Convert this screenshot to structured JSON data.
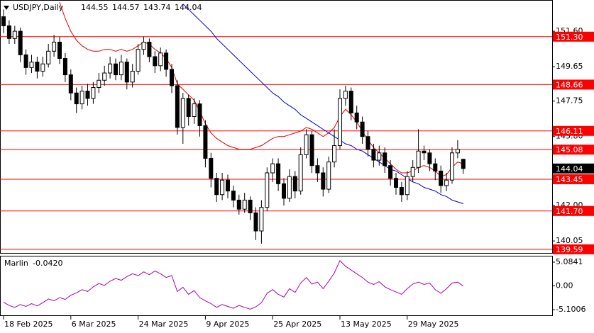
{
  "chart_data": [
    {
      "type": "candlestick",
      "title": "USDJPY,Daily",
      "categories": [
        "18 Feb 2025",
        null,
        null,
        null,
        null,
        null,
        null,
        null,
        null,
        null,
        null,
        null,
        "6 Mar 2025",
        null,
        null,
        null,
        null,
        null,
        null,
        null,
        null,
        null,
        null,
        null,
        "24 Mar 2025",
        null,
        null,
        null,
        null,
        null,
        null,
        null,
        null,
        null,
        null,
        null,
        "9 Apr 2025",
        null,
        null,
        null,
        null,
        null,
        null,
        null,
        null,
        null,
        null,
        null,
        "25 Apr 2025",
        null,
        null,
        null,
        null,
        null,
        null,
        null,
        null,
        null,
        null,
        null,
        "13 May 2025",
        null,
        null,
        null,
        null,
        null,
        null,
        null,
        null,
        null,
        null,
        null,
        "29 May 2025",
        null,
        null,
        null,
        null,
        null,
        null,
        null,
        null,
        null,
        null
      ],
      "open": [
        152.4,
        151.9,
        151.2,
        151.6,
        150.3,
        149.6,
        149.9,
        149.4,
        149.8,
        150.5,
        151.0,
        150.1,
        149.2,
        148.2,
        147.6,
        148.3,
        147.9,
        148.5,
        148.9,
        149.3,
        149.8,
        149.2,
        149.9,
        148.8,
        149.4,
        150.6,
        151.0,
        150.2,
        149.7,
        150.4,
        149.5,
        148.6,
        146.3,
        147.9,
        146.9,
        147.6,
        146.4,
        144.6,
        143.5,
        142.6,
        143.4,
        142.8,
        142.3,
        141.8,
        142.3,
        141.6,
        140.6,
        141.9,
        143.8,
        144.3,
        143.2,
        142.4,
        143.6,
        142.8,
        144.8,
        145.9,
        144.2,
        143.8,
        142.9,
        144.4,
        145.3,
        147.9,
        148.3,
        147.1,
        146.6,
        145.8,
        145.1,
        144.5,
        144.9,
        144.2,
        143.5,
        143.0,
        142.6,
        143.6,
        144.1,
        145.0,
        144.9,
        144.3,
        143.9,
        143.1,
        143.4,
        144.9,
        144.55
      ],
      "high": [
        152.8,
        152.2,
        151.9,
        151.8,
        150.6,
        150.3,
        150.2,
        150.2,
        150.9,
        151.4,
        151.3,
        150.4,
        149.5,
        148.5,
        148.6,
        148.7,
        148.8,
        149.3,
        149.7,
        150.2,
        150.1,
        150.3,
        150.1,
        149.8,
        150.9,
        151.3,
        151.2,
        150.5,
        150.7,
        150.6,
        149.8,
        148.9,
        148.2,
        148.1,
        147.9,
        147.8,
        146.7,
        144.9,
        143.8,
        143.8,
        143.7,
        143.1,
        142.6,
        142.7,
        142.5,
        141.9,
        142.3,
        144.1,
        144.6,
        144.6,
        143.5,
        144.0,
        143.9,
        145.2,
        146.2,
        146.1,
        144.6,
        144.1,
        144.7,
        146.2,
        148.4,
        148.6,
        148.5,
        147.5,
        146.9,
        146.1,
        145.4,
        145.3,
        145.2,
        144.5,
        143.8,
        143.3,
        143.9,
        144.5,
        146.2,
        145.3,
        145.1,
        144.6,
        144.2,
        143.8,
        145.2,
        145.6,
        144.57
      ],
      "low": [
        151.5,
        150.9,
        150.9,
        149.9,
        149.2,
        149.3,
        149.0,
        149.1,
        149.6,
        150.2,
        149.8,
        148.8,
        147.8,
        147.1,
        147.3,
        147.5,
        147.6,
        148.2,
        148.6,
        149.0,
        148.9,
        148.9,
        148.4,
        148.5,
        149.2,
        150.3,
        149.9,
        149.3,
        149.4,
        149.1,
        148.2,
        145.9,
        145.4,
        146.4,
        146.5,
        145.8,
        144.1,
        143.0,
        142.2,
        142.3,
        142.4,
        141.9,
        141.5,
        141.6,
        141.2,
        140.1,
        139.9,
        141.7,
        143.3,
        142.8,
        142.0,
        142.2,
        142.4,
        142.6,
        144.6,
        143.8,
        143.3,
        142.5,
        142.7,
        144.1,
        145.1,
        147.5,
        146.7,
        146.2,
        145.4,
        144.7,
        144.1,
        144.2,
        143.8,
        143.1,
        142.6,
        142.2,
        142.3,
        143.3,
        143.8,
        144.5,
        143.9,
        143.4,
        142.7,
        142.8,
        143.2,
        144.6,
        143.74
      ],
      "close": [
        151.9,
        151.2,
        151.6,
        150.3,
        149.6,
        149.9,
        149.4,
        149.8,
        150.5,
        151.0,
        150.1,
        149.2,
        148.2,
        147.6,
        148.3,
        147.9,
        148.5,
        148.9,
        149.3,
        149.8,
        149.2,
        149.9,
        148.8,
        149.4,
        150.6,
        151.0,
        150.2,
        149.7,
        150.4,
        149.5,
        148.6,
        146.3,
        147.9,
        146.9,
        147.6,
        146.4,
        144.6,
        143.5,
        142.6,
        143.4,
        142.8,
        142.3,
        141.8,
        142.3,
        141.6,
        140.6,
        141.9,
        143.8,
        144.3,
        143.2,
        142.4,
        143.6,
        142.8,
        144.8,
        145.9,
        144.2,
        143.8,
        142.9,
        144.4,
        145.3,
        147.9,
        148.3,
        147.1,
        146.6,
        145.8,
        145.1,
        144.5,
        144.9,
        144.2,
        143.5,
        143.0,
        142.6,
        143.6,
        144.1,
        145.0,
        144.9,
        144.3,
        143.9,
        143.1,
        143.4,
        144.9,
        145.1,
        144.04
      ],
      "series": [
        {
          "color": "#e00000",
          "values": [
            null,
            null,
            null,
            null,
            null,
            null,
            null,
            null,
            null,
            null,
            153.2,
            152.3,
            151.6,
            151.1,
            150.8,
            150.6,
            150.5,
            150.5,
            150.6,
            150.6,
            150.5,
            150.6,
            150.5,
            150.6,
            150.8,
            151.0,
            150.9,
            150.6,
            150.4,
            150.1,
            149.6,
            148.7,
            148.4,
            148.1,
            147.8,
            147.2,
            146.5,
            146.0,
            145.7,
            145.5,
            145.3,
            145.2,
            145.1,
            145.1,
            145.1,
            145.2,
            145.3,
            145.5,
            145.7,
            145.8,
            145.8,
            145.9,
            146.0,
            146.1,
            146.3,
            146.2,
            146.0,
            145.8,
            146.0,
            146.3,
            146.9,
            147.3,
            147.0,
            146.6,
            146.1,
            145.6,
            145.2,
            144.9,
            144.6,
            144.3,
            144.0,
            143.8,
            143.8,
            143.9,
            144.1,
            144.2,
            144.1,
            143.9,
            143.6,
            143.7,
            144.1,
            144.4,
            144.3
          ]
        },
        {
          "color": "#0000cc",
          "values": [
            null,
            null,
            null,
            null,
            null,
            null,
            null,
            null,
            null,
            null,
            null,
            null,
            null,
            null,
            null,
            null,
            null,
            null,
            null,
            null,
            null,
            null,
            null,
            null,
            null,
            null,
            null,
            null,
            null,
            null,
            null,
            null,
            153.1,
            152.8,
            152.5,
            152.2,
            151.9,
            151.6,
            151.2,
            150.9,
            150.6,
            150.3,
            150.0,
            149.7,
            149.4,
            149.1,
            148.8,
            148.5,
            148.2,
            148.0,
            147.7,
            147.5,
            147.3,
            147.0,
            146.8,
            146.6,
            146.4,
            146.2,
            146.0,
            145.8,
            145.6,
            145.4,
            145.3,
            145.1,
            145.0,
            144.8,
            144.6,
            144.4,
            144.2,
            144.0,
            143.9,
            143.7,
            143.5,
            143.3,
            143.2,
            143.0,
            142.9,
            142.8,
            142.6,
            142.5,
            142.3,
            142.2,
            142.1
          ]
        }
      ],
      "levels": [
        {
          "value": 151.3,
          "label": "151.30"
        },
        148.66,
        146.11,
        145.08,
        143.45,
        {
          "value": 141.7,
          "label": "141.70"
        },
        139.59
      ],
      "level_color": "#ff0000",
      "ylim": [
        139.39,
        153.32
      ],
      "yticks": [
        {
          "value": 151.6,
          "label": "151.60"
        },
        149.65,
        147.75,
        {
          "value": 145.8,
          "label": "145.80"
        },
        {
          "value": 142,
          "label": "142.00"
        },
        140.05
      ]
    },
    {
      "type": "line",
      "title": "Marlin",
      "value_label": "-0.0420",
      "color": "#aa00aa",
      "values": [
        -3.5,
        -4.2,
        -4.6,
        -4.0,
        -4.4,
        -3.8,
        -4.3,
        -3.6,
        -2.8,
        -3.2,
        -2.5,
        -2.9,
        -2.0,
        -1.5,
        -0.8,
        -1.2,
        -0.2,
        0.5,
        0.1,
        1.0,
        1.6,
        1.2,
        2.0,
        2.6,
        2.2,
        3.0,
        2.4,
        3.2,
        2.6,
        1.8,
        2.2,
        -1.2,
        -0.3,
        -1.8,
        -1.0,
        -2.5,
        -3.2,
        -3.8,
        -4.6,
        -4.0,
        -4.4,
        -4.8,
        -4.2,
        -4.6,
        -5.0,
        -4.5,
        -3.6,
        -1.6,
        -0.8,
        -1.8,
        -2.4,
        -0.6,
        -1.4,
        0.6,
        1.8,
        0.4,
        0.8,
        -0.6,
        1.0,
        2.8,
        5.4,
        4.2,
        3.4,
        2.6,
        1.8,
        0.8,
        0.3,
        0.9,
        -0.2,
        -0.8,
        -1.3,
        -1.8,
        -0.6,
        0.4,
        0.8,
        0.3,
        0.6,
        -0.8,
        -1.6,
        -0.6,
        0.6,
        0.8,
        -0.042
      ],
      "ylim": [
        -6.3,
        6.3
      ],
      "yticks": [
        5.0841,
        {
          "value": 0,
          "label": "0.00"
        },
        -5.1006
      ]
    }
  ]
}
